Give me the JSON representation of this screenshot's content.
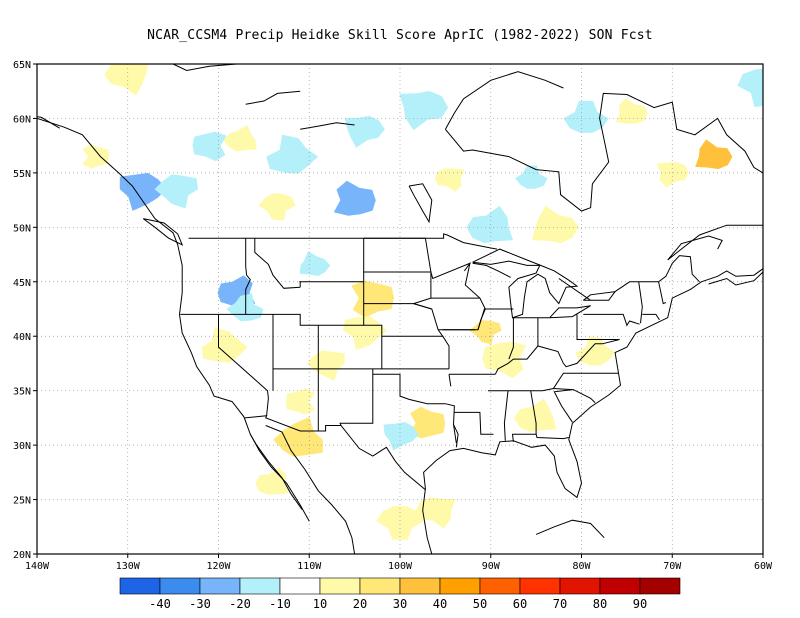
{
  "title": "NCAR_CCSM4 Precip Heidke Skill Score AprIC (1982-2022) SON Fcst",
  "map": {
    "lon_range": [
      -140,
      -60
    ],
    "lat_range": [
      20,
      65
    ],
    "lon_ticks": [
      {
        "value": -140,
        "label": "140W"
      },
      {
        "value": -130,
        "label": "130W"
      },
      {
        "value": -120,
        "label": "120W"
      },
      {
        "value": -110,
        "label": "110W"
      },
      {
        "value": -100,
        "label": "100W"
      },
      {
        "value": -90,
        "label": "90W"
      },
      {
        "value": -80,
        "label": "80W"
      },
      {
        "value": -70,
        "label": "70W"
      },
      {
        "value": -60,
        "label": "60W"
      }
    ],
    "lat_ticks": [
      {
        "value": 20,
        "label": "20N"
      },
      {
        "value": 25,
        "label": "25N"
      },
      {
        "value": 30,
        "label": "30N"
      },
      {
        "value": 35,
        "label": "35N"
      },
      {
        "value": 40,
        "label": "40N"
      },
      {
        "value": 45,
        "label": "45N"
      },
      {
        "value": 50,
        "label": "50N"
      },
      {
        "value": 55,
        "label": "55N"
      },
      {
        "value": 60,
        "label": "60N"
      },
      {
        "value": 65,
        "label": "65N"
      }
    ],
    "gridlines": "dotted"
  },
  "colorbar": {
    "colors": [
      "#1e64e6",
      "#3c8cf0",
      "#78b4fa",
      "#b4f0fa",
      "#ffffff",
      "#fffaaa",
      "#ffe878",
      "#ffc03c",
      "#ffa000",
      "#ff6000",
      "#ff3200",
      "#e11400",
      "#c00000",
      "#a50000"
    ],
    "labels": [
      "-40",
      "-30",
      "-20",
      "-10",
      "10",
      "20",
      "30",
      "40",
      "50",
      "60",
      "70",
      "80",
      "90"
    ]
  },
  "skill_patches": [
    {
      "lon": -133.5,
      "lat": 56.5,
      "value": 15
    },
    {
      "lon": -128.5,
      "lat": 53.5,
      "value": -25
    },
    {
      "lon": -124.5,
      "lat": 53.5,
      "value": -15
    },
    {
      "lon": -121,
      "lat": 57.5,
      "value": -15
    },
    {
      "lon": -117.5,
      "lat": 58,
      "value": 15
    },
    {
      "lon": -112,
      "lat": 56.5,
      "value": -15
    },
    {
      "lon": -105,
      "lat": 52.5,
      "value": -25
    },
    {
      "lon": -104,
      "lat": 59,
      "value": -15
    },
    {
      "lon": -113.5,
      "lat": 52,
      "value": 15
    },
    {
      "lon": -94.5,
      "lat": 54.5,
      "value": 15
    },
    {
      "lon": -90,
      "lat": 50,
      "value": -15
    },
    {
      "lon": -79.5,
      "lat": 60,
      "value": -15
    },
    {
      "lon": -65.5,
      "lat": 56.5,
      "value": 35
    },
    {
      "lon": -70,
      "lat": 55,
      "value": 15
    },
    {
      "lon": -60,
      "lat": 63,
      "value": -15
    },
    {
      "lon": -130,
      "lat": 64,
      "value": 15
    },
    {
      "lon": -118,
      "lat": 44,
      "value": -25
    },
    {
      "lon": -117,
      "lat": 42.5,
      "value": -15
    },
    {
      "lon": -109.5,
      "lat": 46.5,
      "value": -15
    },
    {
      "lon": -103,
      "lat": 43.5,
      "value": 25
    },
    {
      "lon": -104,
      "lat": 40.5,
      "value": 15
    },
    {
      "lon": -108,
      "lat": 37.5,
      "value": 15
    },
    {
      "lon": -111,
      "lat": 34,
      "value": 15
    },
    {
      "lon": -111,
      "lat": 30.5,
      "value": 20
    },
    {
      "lon": -119.5,
      "lat": 39,
      "value": 15
    },
    {
      "lon": -97,
      "lat": 32,
      "value": 25
    },
    {
      "lon": -100,
      "lat": 31,
      "value": -15
    },
    {
      "lon": -90.5,
      "lat": 40.5,
      "value": 25
    },
    {
      "lon": -88.5,
      "lat": 38,
      "value": 15
    },
    {
      "lon": -85,
      "lat": 32.5,
      "value": 15
    },
    {
      "lon": -78.5,
      "lat": 38.5,
      "value": 15
    },
    {
      "lon": -74.5,
      "lat": 60.5,
      "value": 15
    },
    {
      "lon": -97.5,
      "lat": 61,
      "value": -15
    },
    {
      "lon": -100,
      "lat": 23,
      "value": 15
    },
    {
      "lon": -96,
      "lat": 24,
      "value": 15
    },
    {
      "lon": -114,
      "lat": 26.5,
      "value": 15
    },
    {
      "lon": -85.5,
      "lat": 54.5,
      "value": -15
    },
    {
      "lon": -83,
      "lat": 50,
      "value": 15
    }
  ]
}
